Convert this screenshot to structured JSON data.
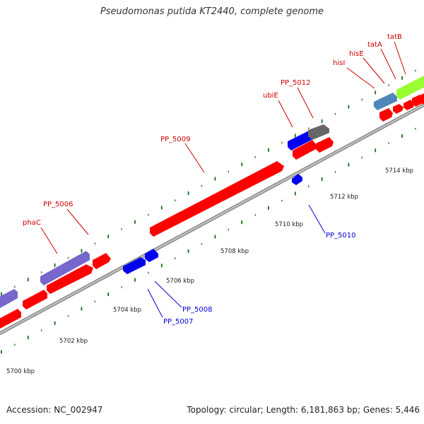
{
  "title": "Pseudomonas putida KT2440, complete genome",
  "footer": {
    "accession": "Accession: NC_002947",
    "summary": "Topology: circular; Length: 6,181,863 bp; Genes: 5,446"
  },
  "colors": {
    "forward_label": "#cc0000",
    "reverse_label": "#0000cc",
    "backbone": "#999999",
    "tick": "#1a6b1a",
    "cds_red": "#ff0000",
    "cds_blue": "#0000ee",
    "cds_purple": "#7766cc",
    "cds_steel": "#4f87b8",
    "cds_gray": "#666666",
    "cds_lime": "#99ff33"
  },
  "scale": {
    "unit": "kbp",
    "tick_labels": [
      "5700 kbp",
      "5702 kbp",
      "5704 kbp",
      "5706 kbp",
      "5708 kbp",
      "5710 kbp",
      "5712 kbp",
      "5714 kbp"
    ]
  },
  "gene_labels": {
    "forward": [
      "phaC",
      "PP_5006",
      "PP_5009",
      "ubiE",
      "PP_5012",
      "hisI",
      "hisE",
      "tatA",
      "tatB"
    ],
    "reverse": [
      "PP_5007",
      "PP_5008",
      "PP_5010"
    ]
  }
}
